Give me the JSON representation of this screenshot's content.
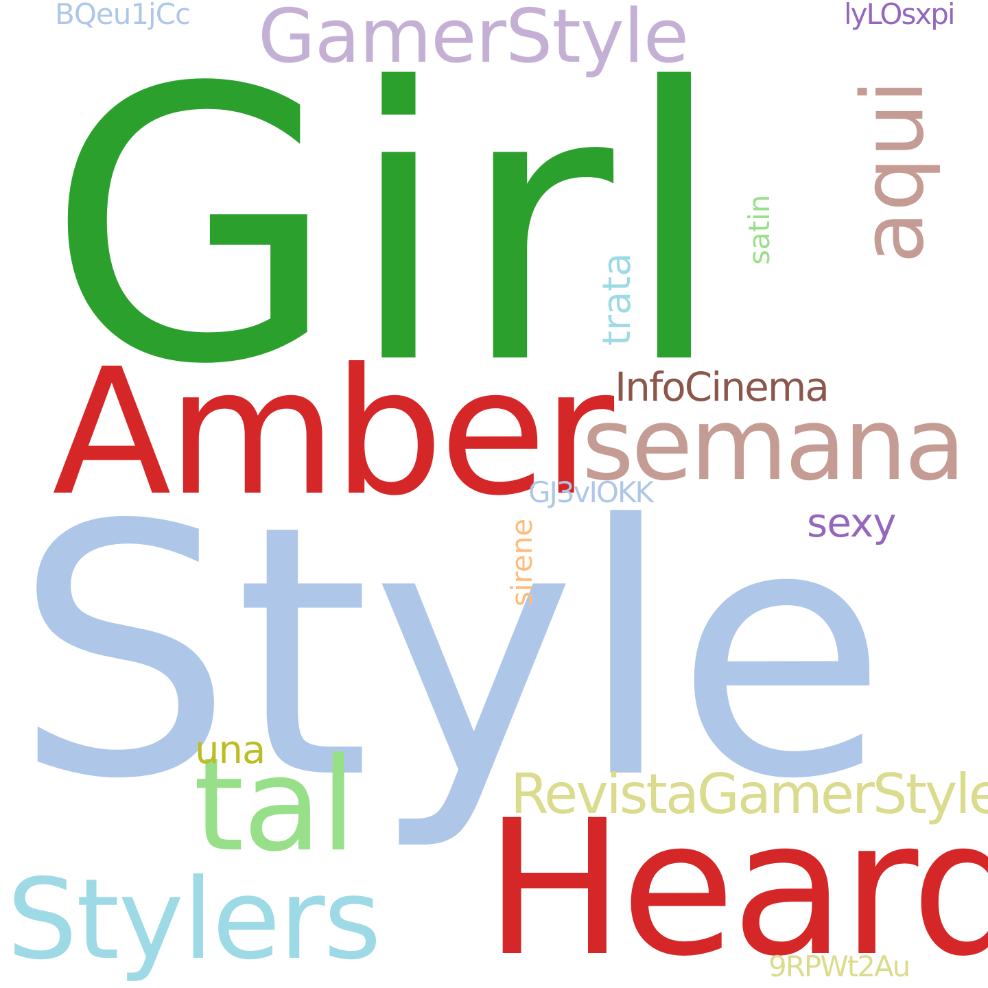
{
  "cloud": {
    "background_color": "#ffffff",
    "words": {
      "girl": {
        "text": "Girl",
        "color": "#2ca02c"
      },
      "style": {
        "text": "Style",
        "color": "#aec7e8"
      },
      "amber": {
        "text": "Amber",
        "color": "#d62728"
      },
      "heard": {
        "text": "Heard",
        "color": "#d62728"
      },
      "tal": {
        "text": "tal",
        "color": "#98df8a"
      },
      "stylers": {
        "text": "Stylers",
        "color": "#9edae5"
      },
      "semana": {
        "text": "semana",
        "color": "#c49c94"
      },
      "gamerstyle": {
        "text": "GamerStyle",
        "color": "#c5b0d5"
      },
      "aqui": {
        "text": "aqui",
        "color": "#c49c94"
      },
      "revista": {
        "text": "RevistaGamerStyle",
        "color": "#dbdb8d"
      },
      "infocinema": {
        "text": "InfoCinema",
        "color": "#8c564b"
      },
      "sexy": {
        "text": "sexy",
        "color": "#9467bd"
      },
      "una": {
        "text": "una",
        "color": "#bcbd22"
      },
      "trata": {
        "text": "trata",
        "color": "#9edae5"
      },
      "satin": {
        "text": "satin",
        "color": "#98df8a"
      },
      "sirene": {
        "text": "sirene",
        "color": "#ffbb78"
      },
      "gj3": {
        "text": "GJ3vIOKK",
        "color": "#aec7e8"
      },
      "bqeu": {
        "text": "BQeu1jCc",
        "color": "#aec7e8"
      },
      "lylo": {
        "text": "lyLOsxpi",
        "color": "#9467bd"
      },
      "rpw": {
        "text": "9RPWt2Au",
        "color": "#dbdb8d"
      }
    }
  }
}
